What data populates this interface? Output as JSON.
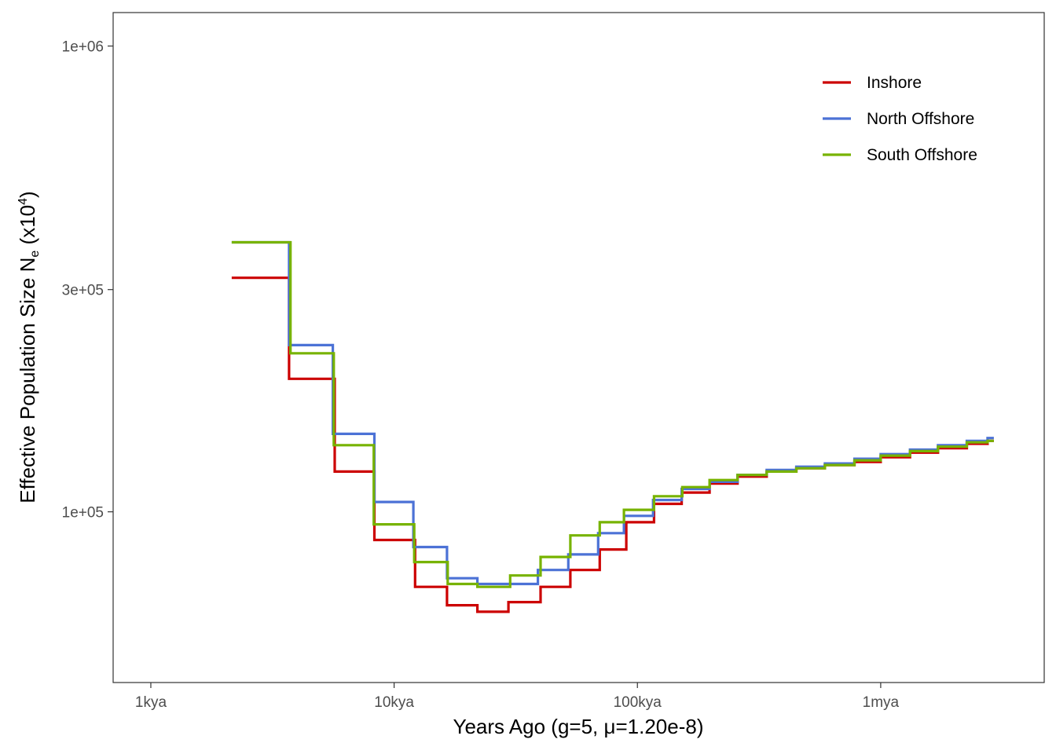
{
  "chart_data": {
    "type": "line",
    "step": true,
    "xlabel": "Years Ago (g=5, μ=1.20e-8)",
    "ylabel": {
      "main": "Effective Population Size N",
      "subscript": "e",
      "unit_open": " (x10",
      "superscript": "4",
      "unit_close": ")"
    },
    "x_scale": "log10",
    "y_scale": "log10",
    "xlim": [
      700,
      4700000
    ],
    "ylim": [
      43000,
      1180000
    ],
    "x_ticks": [
      {
        "value": 1000,
        "label": "1kya"
      },
      {
        "value": 10000,
        "label": "10kya"
      },
      {
        "value": 100000,
        "label": "100kya"
      },
      {
        "value": 1000000,
        "label": "1mya"
      }
    ],
    "y_ticks": [
      {
        "value": 100000,
        "label": "1e+05"
      },
      {
        "value": 300000,
        "label": "3e+05"
      },
      {
        "value": 1000000,
        "label": "1e+06"
      }
    ],
    "grid": false,
    "legend_position": "top-right",
    "series": [
      {
        "name": "Inshore",
        "color": "#CC0000",
        "steps": [
          [
            2150,
            318000
          ],
          [
            3700,
            193000
          ],
          [
            5700,
            122000
          ],
          [
            8300,
            87000
          ],
          [
            12200,
            69000
          ],
          [
            16500,
            63000
          ],
          [
            22000,
            61000
          ],
          [
            29500,
            64000
          ],
          [
            40000,
            69000
          ],
          [
            53000,
            75000
          ],
          [
            70000,
            83000
          ],
          [
            90000,
            95000
          ],
          [
            117000,
            104000
          ],
          [
            152000,
            110000
          ],
          [
            198000,
            115000
          ],
          [
            258000,
            119000
          ],
          [
            340000,
            122000
          ],
          [
            450000,
            124000
          ],
          [
            590000,
            126000
          ],
          [
            780000,
            128000
          ],
          [
            1000000,
            131000
          ],
          [
            1320000,
            134000
          ],
          [
            1720000,
            137000
          ],
          [
            2260000,
            140000
          ],
          [
            2750000,
            142000
          ]
        ]
      },
      {
        "name": "North Offshore",
        "color": "#4C72D6",
        "steps": [
          [
            2150,
            379000
          ],
          [
            3700,
            228000
          ],
          [
            5600,
            147000
          ],
          [
            8300,
            105000
          ],
          [
            12000,
            84000
          ],
          [
            16500,
            72000
          ],
          [
            22000,
            70000
          ],
          [
            39000,
            75000
          ],
          [
            52000,
            81000
          ],
          [
            69000,
            90000
          ],
          [
            88000,
            98000
          ],
          [
            116000,
            106000
          ],
          [
            152000,
            112000
          ],
          [
            198000,
            116000
          ],
          [
            258000,
            120000
          ],
          [
            340000,
            123000
          ],
          [
            450000,
            125000
          ],
          [
            590000,
            127000
          ],
          [
            780000,
            130000
          ],
          [
            1000000,
            133000
          ],
          [
            1320000,
            136000
          ],
          [
            1720000,
            139000
          ],
          [
            2260000,
            142000
          ],
          [
            2750000,
            144000
          ]
        ]
      },
      {
        "name": "South Offshore",
        "color": "#77B300",
        "steps": [
          [
            2150,
            379000
          ],
          [
            3750,
            219000
          ],
          [
            5650,
            139000
          ],
          [
            8250,
            94000
          ],
          [
            12100,
            78000
          ],
          [
            16600,
            70000
          ],
          [
            22000,
            69000
          ],
          [
            30000,
            73000
          ],
          [
            40000,
            80000
          ],
          [
            53000,
            89000
          ],
          [
            70000,
            95000
          ],
          [
            88000,
            101000
          ],
          [
            117000,
            108000
          ],
          [
            153000,
            113000
          ],
          [
            198000,
            117000
          ],
          [
            258000,
            120000
          ],
          [
            340000,
            122000
          ],
          [
            450000,
            124000
          ],
          [
            590000,
            126000
          ],
          [
            780000,
            129000
          ],
          [
            1000000,
            132000
          ],
          [
            1320000,
            135000
          ],
          [
            1720000,
            138000
          ],
          [
            2260000,
            141000
          ],
          [
            2750000,
            142000
          ]
        ]
      }
    ]
  }
}
